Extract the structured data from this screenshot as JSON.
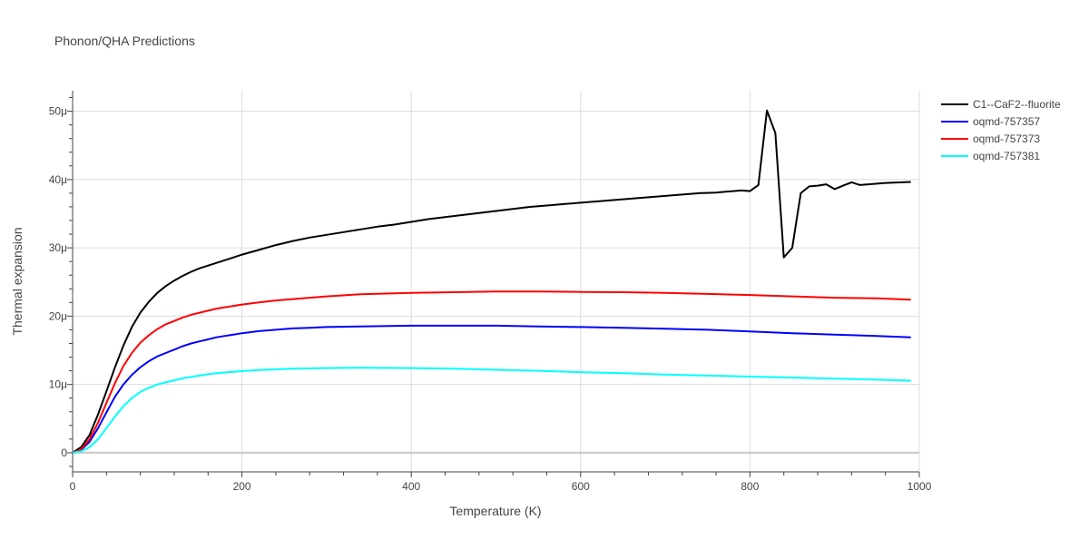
{
  "chart_data": {
    "type": "line",
    "title": "Phonon/QHA Predictions",
    "xlabel": "Temperature (K)",
    "ylabel": "Thermal expansion",
    "xlim": [
      0,
      1000
    ],
    "ylim": [
      -2.8e-06,
      5.3e-05
    ],
    "x_ticks": [
      0,
      200,
      400,
      600,
      800,
      1000
    ],
    "x_tick_labels": [
      "0",
      "200",
      "400",
      "600",
      "800",
      "1000"
    ],
    "y_ticks": [
      0,
      1e-05,
      2e-05,
      3e-05,
      4e-05,
      5e-05
    ],
    "y_tick_labels": [
      "0",
      "10μ",
      "20μ",
      "30μ",
      "40μ",
      "50μ"
    ],
    "grid": true,
    "legend_position": "top-right",
    "series": [
      {
        "name": "C1--CaF2--fluorite",
        "color": "#000000",
        "x": [
          0,
          10,
          20,
          30,
          40,
          50,
          60,
          70,
          80,
          90,
          100,
          110,
          120,
          130,
          140,
          150,
          160,
          170,
          180,
          190,
          200,
          220,
          240,
          260,
          280,
          300,
          320,
          340,
          360,
          380,
          400,
          420,
          440,
          460,
          480,
          500,
          520,
          540,
          560,
          580,
          600,
          620,
          640,
          660,
          680,
          700,
          720,
          740,
          760,
          770,
          780,
          790,
          800,
          810,
          820,
          830,
          840,
          850,
          860,
          870,
          880,
          890,
          900,
          910,
          920,
          930,
          940,
          950,
          960,
          970,
          980,
          990
        ],
        "y": [
          0,
          8e-07,
          2.6e-06,
          5.6e-06,
          9e-06,
          1.25e-05,
          1.57e-05,
          1.84e-05,
          2.05e-05,
          2.21e-05,
          2.34e-05,
          2.44e-05,
          2.52e-05,
          2.59e-05,
          2.65e-05,
          2.7e-05,
          2.74e-05,
          2.78e-05,
          2.82e-05,
          2.86e-05,
          2.9e-05,
          2.97e-05,
          3.04e-05,
          3.1e-05,
          3.15e-05,
          3.19e-05,
          3.23e-05,
          3.27e-05,
          3.31e-05,
          3.34e-05,
          3.38e-05,
          3.42e-05,
          3.45e-05,
          3.48e-05,
          3.51e-05,
          3.54e-05,
          3.57e-05,
          3.6e-05,
          3.62e-05,
          3.64e-05,
          3.66e-05,
          3.68e-05,
          3.7e-05,
          3.72e-05,
          3.74e-05,
          3.76e-05,
          3.78e-05,
          3.8e-05,
          3.81e-05,
          3.82e-05,
          3.83e-05,
          3.84e-05,
          3.83e-05,
          3.92e-05,
          5.01e-05,
          4.68e-05,
          2.86e-05,
          3e-05,
          3.8e-05,
          3.9e-05,
          3.91e-05,
          3.93e-05,
          3.86e-05,
          3.91e-05,
          3.96e-05,
          3.92e-05,
          3.93e-05,
          3.94e-05,
          3.95e-05,
          3.955e-05,
          3.96e-05,
          3.965e-05
        ]
      },
      {
        "name": "oqmd-757357",
        "color": "#0000ff",
        "x": [
          0,
          10,
          20,
          30,
          40,
          50,
          60,
          70,
          80,
          90,
          100,
          110,
          120,
          130,
          140,
          150,
          160,
          170,
          180,
          190,
          200,
          220,
          240,
          260,
          280,
          300,
          340,
          400,
          450,
          500,
          550,
          600,
          650,
          700,
          750,
          800,
          850,
          900,
          950,
          990
        ],
        "y": [
          0,
          4e-07,
          1.6e-06,
          3.6e-06,
          5.9e-06,
          8.2e-06,
          1e-05,
          1.14e-05,
          1.25e-05,
          1.34e-05,
          1.41e-05,
          1.46e-05,
          1.51e-05,
          1.56e-05,
          1.6e-05,
          1.63e-05,
          1.66e-05,
          1.69e-05,
          1.71e-05,
          1.73e-05,
          1.75e-05,
          1.78e-05,
          1.8e-05,
          1.82e-05,
          1.83e-05,
          1.84e-05,
          1.85e-05,
          1.86e-05,
          1.86e-05,
          1.86e-05,
          1.85e-05,
          1.84e-05,
          1.83e-05,
          1.815e-05,
          1.8e-05,
          1.775e-05,
          1.75e-05,
          1.73e-05,
          1.71e-05,
          1.69e-05
        ]
      },
      {
        "name": "oqmd-757373",
        "color": "#ff0000",
        "x": [
          0,
          10,
          20,
          30,
          40,
          50,
          60,
          70,
          80,
          90,
          100,
          110,
          120,
          130,
          140,
          150,
          160,
          170,
          180,
          190,
          200,
          220,
          240,
          260,
          280,
          300,
          340,
          400,
          450,
          500,
          520,
          550,
          600,
          650,
          700,
          750,
          800,
          850,
          900,
          950,
          990
        ],
        "y": [
          0,
          5e-07,
          2e-06,
          4.4e-06,
          7.3e-06,
          1.02e-05,
          1.27e-05,
          1.46e-05,
          1.61e-05,
          1.72e-05,
          1.81e-05,
          1.88e-05,
          1.93e-05,
          1.98e-05,
          2.02e-05,
          2.05e-05,
          2.08e-05,
          2.11e-05,
          2.13e-05,
          2.15e-05,
          2.17e-05,
          2.2e-05,
          2.23e-05,
          2.25e-05,
          2.27e-05,
          2.29e-05,
          2.32e-05,
          2.34e-05,
          2.35e-05,
          2.36e-05,
          2.36e-05,
          2.36e-05,
          2.355e-05,
          2.35e-05,
          2.34e-05,
          2.325e-05,
          2.31e-05,
          2.29e-05,
          2.27e-05,
          2.26e-05,
          2.24e-05
        ]
      },
      {
        "name": "oqmd-757381",
        "color": "#00ffff",
        "x": [
          0,
          10,
          20,
          30,
          40,
          50,
          60,
          70,
          80,
          90,
          100,
          110,
          120,
          130,
          140,
          150,
          160,
          170,
          180,
          190,
          200,
          220,
          240,
          260,
          280,
          300,
          340,
          400,
          450,
          500,
          550,
          600,
          650,
          700,
          750,
          800,
          850,
          900,
          950,
          990
        ],
        "y": [
          0,
          2e-07,
          8e-07,
          2e-06,
          3.6e-06,
          5.3e-06,
          6.8e-06,
          8e-06,
          8.9e-06,
          9.5e-06,
          1e-05,
          1.03e-05,
          1.06e-05,
          1.09e-05,
          1.11e-05,
          1.13e-05,
          1.15e-05,
          1.165e-05,
          1.175e-05,
          1.185e-05,
          1.195e-05,
          1.21e-05,
          1.22e-05,
          1.23e-05,
          1.235e-05,
          1.24e-05,
          1.245e-05,
          1.24e-05,
          1.23e-05,
          1.215e-05,
          1.2e-05,
          1.18e-05,
          1.165e-05,
          1.145e-05,
          1.13e-05,
          1.115e-05,
          1.1e-05,
          1.085e-05,
          1.07e-05,
          1.055e-05
        ]
      }
    ]
  }
}
